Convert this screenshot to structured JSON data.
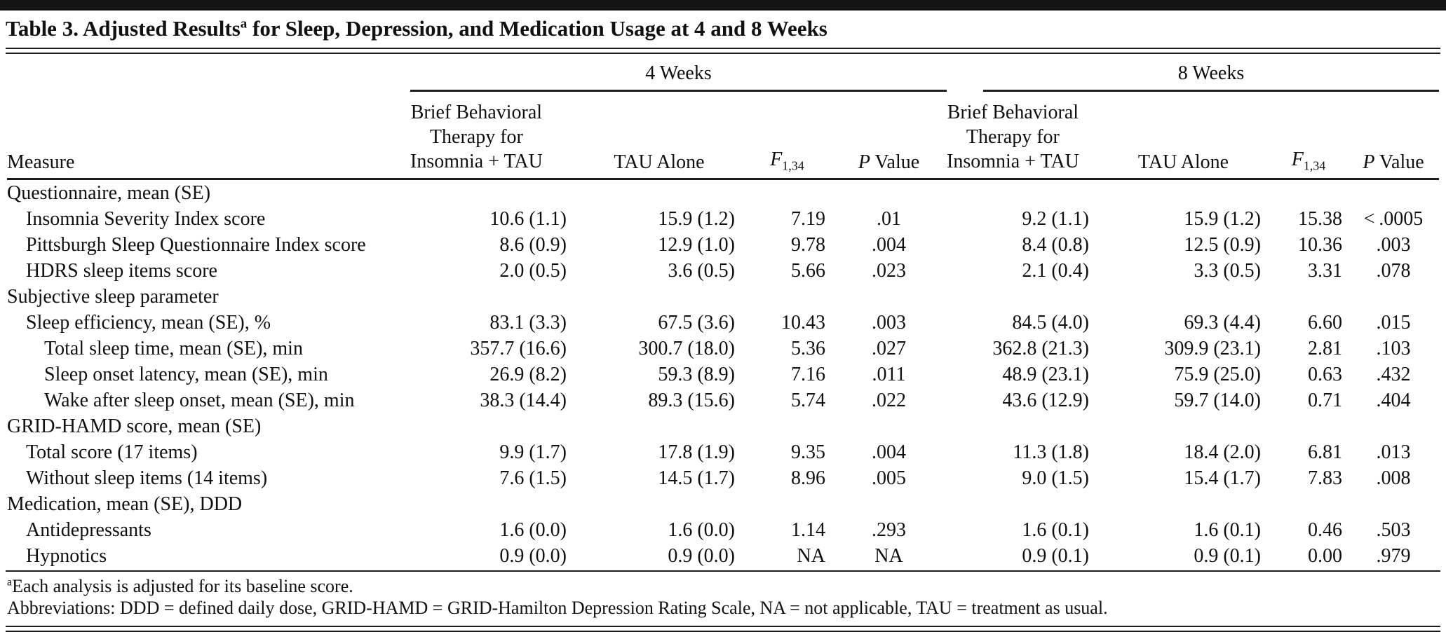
{
  "title": {
    "text_before_sup": "Table 3. Adjusted Results",
    "sup": "a",
    "text_after_sup": " for Sleep, Depression, and Medication Usage at 4 and 8 Weeks"
  },
  "header": {
    "measure_label": "Measure",
    "group_4wk": "4 Weeks",
    "group_8wk": "8 Weeks",
    "treatment_lines": [
      "Brief Behavioral",
      "Therapy for",
      "Insomnia + TAU"
    ],
    "tau_label": "TAU Alone",
    "f_label": "F",
    "f_subscript": "1,34",
    "p_label_italic": "P",
    "p_label_rest": " Value"
  },
  "rows": [
    {
      "label": "Questionnaire, mean (SE)",
      "indent": 0,
      "w4": [
        "",
        "",
        "",
        ""
      ],
      "w8": [
        "",
        "",
        "",
        ""
      ]
    },
    {
      "label": "Insomnia Severity Index score",
      "indent": 1,
      "w4": [
        "10.6 (1.1)",
        "15.9 (1.2)",
        "7.19",
        ".01"
      ],
      "w8": [
        "9.2 (1.1)",
        "15.9 (1.2)",
        "15.38",
        "< .0005"
      ]
    },
    {
      "label": "Pittsburgh Sleep Questionnaire Index score",
      "indent": 1,
      "w4": [
        "8.6 (0.9)",
        "12.9 (1.0)",
        "9.78",
        ".004"
      ],
      "w8": [
        "8.4 (0.8)",
        "12.5 (0.9)",
        "10.36",
        ".003"
      ]
    },
    {
      "label": "HDRS sleep items score",
      "indent": 1,
      "w4": [
        "2.0 (0.5)",
        "3.6 (0.5)",
        "5.66",
        ".023"
      ],
      "w8": [
        "2.1 (0.4)",
        "3.3 (0.5)",
        "3.31",
        ".078"
      ]
    },
    {
      "label": "Subjective sleep parameter",
      "indent": 0,
      "w4": [
        "",
        "",
        "",
        ""
      ],
      "w8": [
        "",
        "",
        "",
        ""
      ]
    },
    {
      "label": "Sleep efficiency, mean (SE), %",
      "indent": 1,
      "w4": [
        "83.1 (3.3)",
        "67.5 (3.6)",
        "10.43",
        ".003"
      ],
      "w8": [
        "84.5 (4.0)",
        "69.3 (4.4)",
        "6.60",
        ".015"
      ]
    },
    {
      "label": "Total sleep time, mean (SE), min",
      "indent": 2,
      "w4": [
        "357.7 (16.6)",
        "300.7 (18.0)",
        "5.36",
        ".027"
      ],
      "w8": [
        "362.8 (21.3)",
        "309.9 (23.1)",
        "2.81",
        ".103"
      ]
    },
    {
      "label": "Sleep onset latency, mean (SE), min",
      "indent": 2,
      "w4": [
        "26.9 (8.2)",
        "59.3 (8.9)",
        "7.16",
        ".011"
      ],
      "w8": [
        "48.9 (23.1)",
        "75.9 (25.0)",
        "0.63",
        ".432"
      ]
    },
    {
      "label": "Wake after sleep onset, mean (SE), min",
      "indent": 2,
      "w4": [
        "38.3 (14.4)",
        "89.3 (15.6)",
        "5.74",
        ".022"
      ],
      "w8": [
        "43.6 (12.9)",
        "59.7 (14.0)",
        "0.71",
        ".404"
      ]
    },
    {
      "label": "GRID-HAMD score, mean (SE)",
      "indent": 0,
      "w4": [
        "",
        "",
        "",
        ""
      ],
      "w8": [
        "",
        "",
        "",
        ""
      ]
    },
    {
      "label": "Total score (17 items)",
      "indent": 1,
      "w4": [
        "9.9 (1.7)",
        "17.8 (1.9)",
        "9.35",
        ".004"
      ],
      "w8": [
        "11.3 (1.8)",
        "18.4 (2.0)",
        "6.81",
        ".013"
      ]
    },
    {
      "label": "Without sleep items (14 items)",
      "indent": 1,
      "w4": [
        "7.6 (1.5)",
        "14.5 (1.7)",
        "8.96",
        ".005"
      ],
      "w8": [
        "9.0 (1.5)",
        "15.4 (1.7)",
        "7.83",
        ".008"
      ]
    },
    {
      "label": "Medication, mean (SE), DDD",
      "indent": 0,
      "w4": [
        "",
        "",
        "",
        ""
      ],
      "w8": [
        "",
        "",
        "",
        ""
      ]
    },
    {
      "label": "Antidepressants",
      "indent": 1,
      "w4": [
        "1.6 (0.0)",
        "1.6 (0.0)",
        "1.14",
        ".293"
      ],
      "w8": [
        "1.6 (0.1)",
        "1.6 (0.1)",
        "0.46",
        ".503"
      ]
    },
    {
      "label": "Hypnotics",
      "indent": 1,
      "w4": [
        "0.9 (0.0)",
        "0.9 (0.0)",
        "NA",
        "NA"
      ],
      "w8": [
        "0.9 (0.1)",
        "0.9 (0.1)",
        "0.00",
        ".979"
      ]
    }
  ],
  "footnotes": {
    "note_a_sup": "a",
    "note_a": "Each analysis is adjusted for its baseline score.",
    "abbreviations": "Abbreviations: DDD = defined daily dose, GRID-HAMD = GRID-Hamilton Depression Rating Scale, NA = not applicable, TAU = treatment as usual."
  },
  "colors": {
    "background": "#ffffff",
    "text": "#111111",
    "rule": "#1c1c1c"
  }
}
